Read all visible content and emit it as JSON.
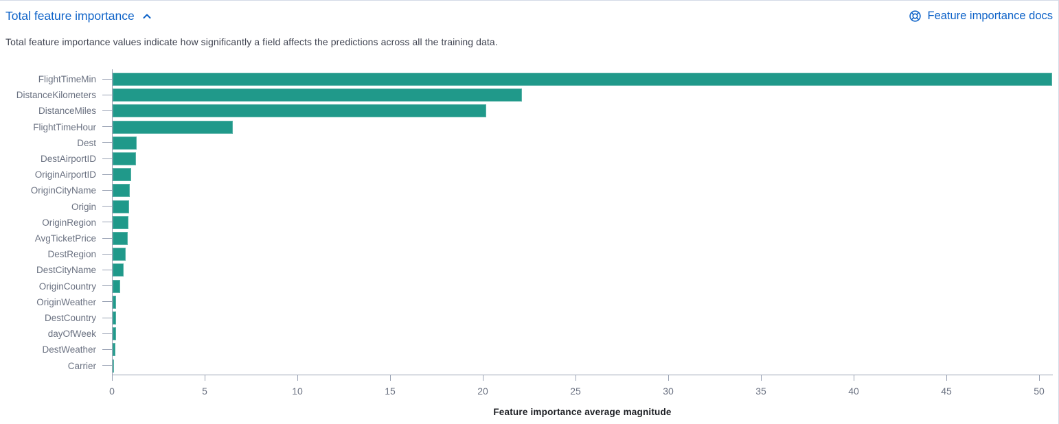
{
  "header": {
    "title": "Total feature importance",
    "docs_link_label": "Feature importance docs",
    "description": "Total feature importance values indicate how significantly a field affects the predictions across all the training data."
  },
  "icons": {
    "collapse": "chevron-up-icon",
    "docs": "documentation-icon"
  },
  "colors": {
    "bar": "#20998A",
    "link_blue": "#0D62C8",
    "axis_label": "#6A7181",
    "axis_line": "#98A1B3",
    "description_text": "#3F4350",
    "axis_title_text": "#1A1C21",
    "panel_border": "#D3DAE6"
  },
  "chart_data": {
    "type": "bar",
    "orientation": "horizontal",
    "title": "Total feature importance",
    "xlabel": "Feature importance average magnitude",
    "ylabel": "",
    "xlim": [
      0,
      50.7
    ],
    "x_ticks": [
      0,
      5,
      10,
      15,
      20,
      25,
      30,
      35,
      40,
      45,
      50
    ],
    "grid": false,
    "legend": false,
    "bar_color": "#20998A",
    "categories": [
      "FlightTimeMin",
      "DistanceKilometers",
      "DistanceMiles",
      "FlightTimeHour",
      "Dest",
      "DestAirportID",
      "OriginAirportID",
      "OriginCityName",
      "Origin",
      "OriginRegion",
      "AvgTicketPrice",
      "DestRegion",
      "DestCityName",
      "OriginCountry",
      "OriginWeather",
      "DestCountry",
      "dayOfWeek",
      "DestWeather",
      "Carrier"
    ],
    "values": [
      50.7,
      22.1,
      20.2,
      6.5,
      1.35,
      1.3,
      1.05,
      0.97,
      0.93,
      0.88,
      0.84,
      0.73,
      0.63,
      0.44,
      0.23,
      0.22,
      0.21,
      0.18,
      0.07
    ]
  }
}
